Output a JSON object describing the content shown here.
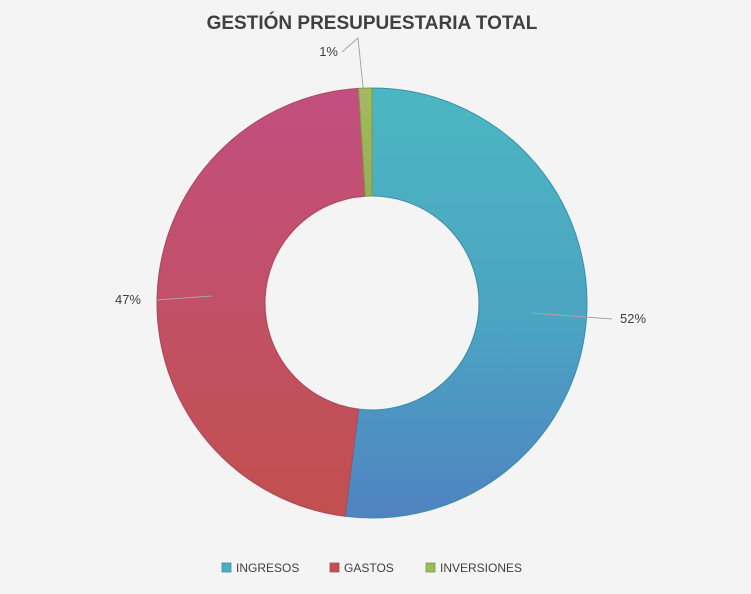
{
  "chart_data": {
    "type": "pie",
    "variant": "doughnut",
    "title": "GESTIÓN PRESUPUESTARIA TOTAL",
    "categories": [
      "INGRESOS",
      "GASTOS",
      "INVERSIONES"
    ],
    "values": [
      52,
      47,
      1
    ],
    "data_labels": [
      "52%",
      "47%",
      "1%"
    ],
    "colors": [
      "#4bacc6",
      "#c0504d",
      "#9bbb59"
    ],
    "legend_position": "bottom"
  }
}
